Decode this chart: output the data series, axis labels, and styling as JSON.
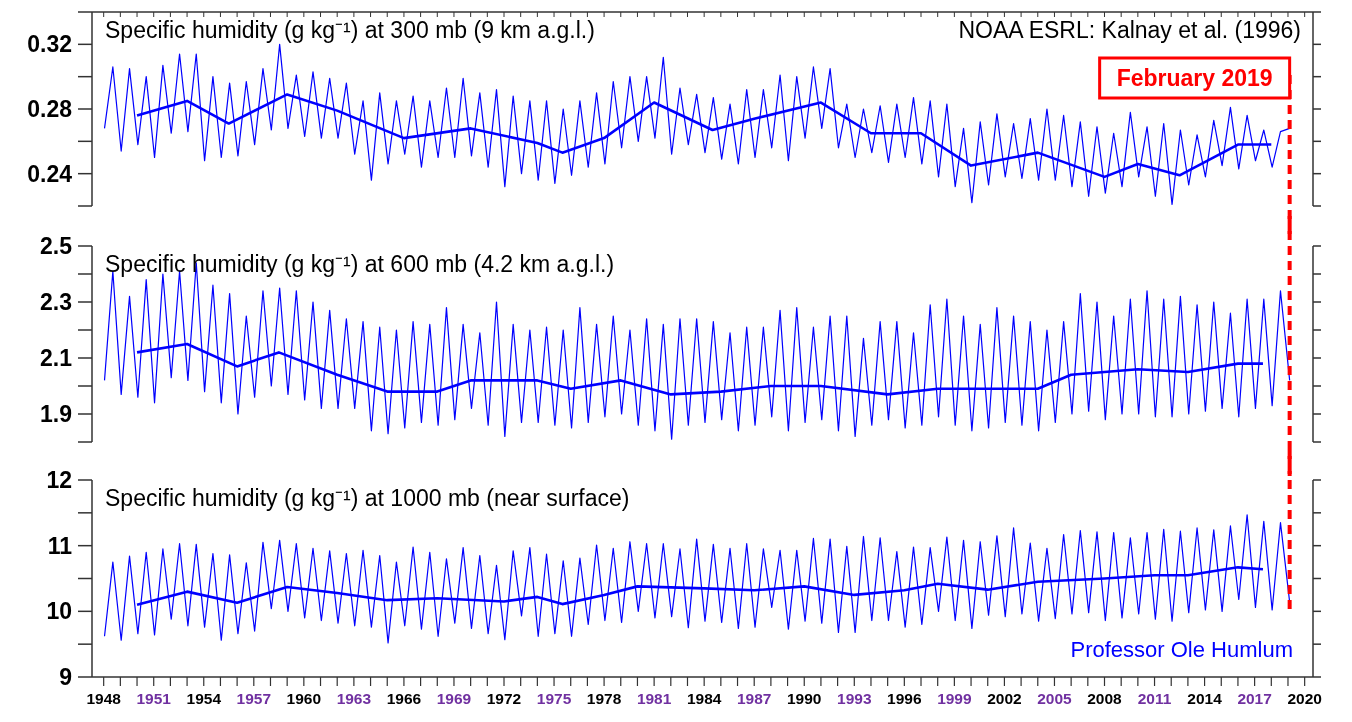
{
  "chart_data": [
    {
      "type": "line",
      "title": "Specific humidity (g kg⁻¹) at 300 mb (9 km a.g.l.)",
      "annotations": [
        "NOAA ESRL: Kalnay et al. (1996)"
      ],
      "xlim": [
        1947.3,
        2020.5
      ],
      "ylim": [
        0.22,
        0.34
      ],
      "yticks": [
        {
          "value": 0.22,
          "label": null
        },
        0.24,
        {
          "value": 0.26,
          "label": null
        },
        0.28,
        {
          "value": 0.3,
          "label": null
        },
        0.32,
        {
          "value": 0.34,
          "label": null
        }
      ],
      "tick_labels": "y",
      "ref_lines": [
        {
          "axis": "x",
          "value": 2019.1,
          "label": "February 2019",
          "color": "#ff0000",
          "line_style": "dashed"
        }
      ],
      "series": [
        {
          "color": "#0000ff",
          "x": [
            1948.05,
            1948.55,
            1949.05,
            1949.55,
            1950.05,
            1950.55,
            1951.05,
            1951.55,
            1952.05,
            1952.55,
            1953.05,
            1953.55,
            1954.05,
            1954.55,
            1955.05,
            1955.55,
            1956.05,
            1956.55,
            1957.05,
            1957.55,
            1958.05,
            1958.55,
            1959.05,
            1959.55,
            1960.05,
            1960.55,
            1961.05,
            1961.55,
            1962.05,
            1962.55,
            1963.05,
            1963.55,
            1964.05,
            1964.55,
            1965.05,
            1965.55,
            1966.05,
            1966.55,
            1967.05,
            1967.55,
            1968.05,
            1968.55,
            1969.05,
            1969.55,
            1970.05,
            1970.55,
            1971.05,
            1971.55,
            1972.05,
            1972.55,
            1973.05,
            1973.55,
            1974.05,
            1974.55,
            1975.05,
            1975.55,
            1976.05,
            1976.55,
            1977.05,
            1977.55,
            1978.05,
            1978.55,
            1979.05,
            1979.55,
            1980.05,
            1980.55,
            1981.05,
            1981.55,
            1982.05,
            1982.55,
            1983.05,
            1983.55,
            1984.05,
            1984.55,
            1985.05,
            1985.55,
            1986.05,
            1986.55,
            1987.05,
            1987.55,
            1988.05,
            1988.55,
            1989.05,
            1989.55,
            1990.05,
            1990.55,
            1991.05,
            1991.55,
            1992.05,
            1992.55,
            1993.05,
            1993.55,
            1994.05,
            1994.55,
            1995.05,
            1995.55,
            1996.05,
            1996.55,
            1997.05,
            1997.55,
            1998.05,
            1998.55,
            1999.05,
            1999.55,
            2000.05,
            2000.55,
            2001.05,
            2001.55,
            2002.05,
            2002.55,
            2003.05,
            2003.55,
            2004.05,
            2004.55,
            2005.05,
            2005.55,
            2006.05,
            2006.55,
            2007.05,
            2007.55,
            2008.05,
            2008.55,
            2009.05,
            2009.55,
            2010.05,
            2010.55,
            2011.05,
            2011.55,
            2012.05,
            2012.55,
            2013.05,
            2013.55,
            2014.05,
            2014.55,
            2015.05,
            2015.55,
            2016.05,
            2016.55,
            2017.05,
            2017.55,
            2018.05,
            2018.55,
            2019.1
          ],
          "values": [
            0.268,
            0.306,
            0.254,
            0.305,
            0.258,
            0.3,
            0.25,
            0.307,
            0.265,
            0.314,
            0.266,
            0.314,
            0.248,
            0.3,
            0.25,
            0.296,
            0.251,
            0.297,
            0.258,
            0.305,
            0.267,
            0.32,
            0.268,
            0.301,
            0.263,
            0.303,
            0.262,
            0.299,
            0.262,
            0.296,
            0.252,
            0.285,
            0.236,
            0.29,
            0.246,
            0.285,
            0.252,
            0.288,
            0.244,
            0.285,
            0.25,
            0.293,
            0.25,
            0.299,
            0.251,
            0.29,
            0.244,
            0.292,
            0.232,
            0.288,
            0.24,
            0.285,
            0.236,
            0.285,
            0.234,
            0.28,
            0.239,
            0.285,
            0.244,
            0.29,
            0.246,
            0.297,
            0.256,
            0.3,
            0.26,
            0.3,
            0.262,
            0.312,
            0.252,
            0.293,
            0.258,
            0.289,
            0.253,
            0.287,
            0.249,
            0.283,
            0.246,
            0.292,
            0.25,
            0.292,
            0.256,
            0.301,
            0.248,
            0.3,
            0.262,
            0.306,
            0.268,
            0.305,
            0.256,
            0.283,
            0.25,
            0.28,
            0.253,
            0.282,
            0.247,
            0.283,
            0.25,
            0.287,
            0.246,
            0.285,
            0.238,
            0.283,
            0.232,
            0.268,
            0.222,
            0.272,
            0.233,
            0.277,
            0.238,
            0.271,
            0.237,
            0.274,
            0.236,
            0.28,
            0.236,
            0.276,
            0.232,
            0.272,
            0.226,
            0.269,
            0.228,
            0.265,
            0.232,
            0.278,
            0.238,
            0.269,
            0.226,
            0.271,
            0.221,
            0.267,
            0.233,
            0.264,
            0.238,
            0.273,
            0.245,
            0.281,
            0.243,
            0.276,
            0.248,
            0.267,
            0.244,
            0.266,
            0.268
          ]
        },
        {
          "color": "#0000ff",
          "x": [
            1950,
            1953,
            1955.5,
            1959,
            1962,
            1966,
            1970,
            1974,
            1975.5,
            1978,
            1981,
            1984.5,
            1987,
            1991,
            1994,
            1997,
            2000,
            2004,
            2008,
            2010,
            2012.5,
            2016,
            2018
          ],
          "values": [
            0.276,
            0.285,
            0.271,
            0.289,
            0.279,
            0.262,
            0.268,
            0.259,
            0.253,
            0.262,
            0.284,
            0.267,
            0.274,
            0.284,
            0.265,
            0.265,
            0.245,
            0.253,
            0.238,
            0.246,
            0.239,
            0.258,
            0.258
          ]
        }
      ]
    },
    {
      "type": "line",
      "title": "Specific humidity (g kg⁻¹) at 600 mb (4.2 km a.g.l.)",
      "xlim": [
        1947.3,
        2020.5
      ],
      "ylim": [
        1.8,
        2.5
      ],
      "yticks": [
        {
          "value": 1.8,
          "label": null
        },
        1.9,
        {
          "value": 2.0,
          "label": null
        },
        2.1,
        {
          "value": 2.2,
          "label": null
        },
        2.3,
        {
          "value": 2.4,
          "label": null
        },
        2.5
      ],
      "tick_labels": "y",
      "ref_lines": [
        {
          "axis": "x",
          "value": 2019.1,
          "color": "#ff0000",
          "line_style": "dashed"
        }
      ],
      "series": [
        {
          "color": "#0000ff",
          "x": [
            1948.05,
            1948.55,
            1949.05,
            1949.55,
            1950.05,
            1950.55,
            1951.05,
            1951.55,
            1952.05,
            1952.55,
            1953.05,
            1953.55,
            1954.05,
            1954.55,
            1955.05,
            1955.55,
            1956.05,
            1956.55,
            1957.05,
            1957.55,
            1958.05,
            1958.55,
            1959.05,
            1959.55,
            1960.05,
            1960.55,
            1961.05,
            1961.55,
            1962.05,
            1962.55,
            1963.05,
            1963.55,
            1964.05,
            1964.55,
            1965.05,
            1965.55,
            1966.05,
            1966.55,
            1967.05,
            1967.55,
            1968.05,
            1968.55,
            1969.05,
            1969.55,
            1970.05,
            1970.55,
            1971.05,
            1971.55,
            1972.05,
            1972.55,
            1973.05,
            1973.55,
            1974.05,
            1974.55,
            1975.05,
            1975.55,
            1976.05,
            1976.55,
            1977.05,
            1977.55,
            1978.05,
            1978.55,
            1979.05,
            1979.55,
            1980.05,
            1980.55,
            1981.05,
            1981.55,
            1982.05,
            1982.55,
            1983.05,
            1983.55,
            1984.05,
            1984.55,
            1985.05,
            1985.55,
            1986.05,
            1986.55,
            1987.05,
            1987.55,
            1988.05,
            1988.55,
            1989.05,
            1989.55,
            1990.05,
            1990.55,
            1991.05,
            1991.55,
            1992.05,
            1992.55,
            1993.05,
            1993.55,
            1994.05,
            1994.55,
            1995.05,
            1995.55,
            1996.05,
            1996.55,
            1997.05,
            1997.55,
            1998.05,
            1998.55,
            1999.05,
            1999.55,
            2000.05,
            2000.55,
            2001.05,
            2001.55,
            2002.05,
            2002.55,
            2003.05,
            2003.55,
            2004.05,
            2004.55,
            2005.05,
            2005.55,
            2006.05,
            2006.55,
            2007.05,
            2007.55,
            2008.05,
            2008.55,
            2009.05,
            2009.55,
            2010.05,
            2010.55,
            2011.05,
            2011.55,
            2012.05,
            2012.55,
            2013.05,
            2013.55,
            2014.05,
            2014.55,
            2015.05,
            2015.55,
            2016.05,
            2016.55,
            2017.05,
            2017.55,
            2018.05,
            2018.55,
            2019.1
          ],
          "values": [
            2.02,
            2.41,
            1.97,
            2.32,
            1.96,
            2.38,
            1.94,
            2.4,
            2.03,
            2.41,
            2.02,
            2.44,
            1.98,
            2.36,
            1.94,
            2.33,
            1.9,
            2.25,
            1.96,
            2.34,
            2.0,
            2.35,
            1.97,
            2.34,
            1.95,
            2.3,
            1.92,
            2.27,
            1.92,
            2.24,
            1.92,
            2.23,
            1.84,
            2.21,
            1.83,
            2.2,
            1.85,
            2.23,
            1.87,
            2.22,
            1.86,
            2.28,
            1.88,
            2.22,
            1.92,
            2.19,
            1.86,
            2.3,
            1.82,
            2.22,
            1.87,
            2.2,
            1.87,
            2.21,
            1.86,
            2.2,
            1.85,
            2.28,
            1.87,
            2.22,
            1.89,
            2.25,
            1.9,
            2.2,
            1.86,
            2.24,
            1.84,
            2.22,
            1.81,
            2.24,
            1.86,
            2.24,
            1.87,
            2.23,
            1.88,
            2.19,
            1.84,
            2.21,
            1.86,
            2.21,
            1.89,
            2.27,
            1.84,
            2.28,
            1.87,
            2.21,
            1.88,
            2.25,
            1.84,
            2.25,
            1.82,
            2.17,
            1.86,
            2.23,
            1.88,
            2.23,
            1.85,
            2.19,
            1.86,
            2.29,
            1.89,
            2.31,
            1.86,
            2.25,
            1.84,
            2.22,
            1.85,
            2.28,
            1.87,
            2.25,
            1.86,
            2.23,
            1.84,
            2.2,
            1.87,
            2.23,
            1.9,
            2.33,
            1.91,
            2.3,
            1.88,
            2.25,
            1.9,
            2.31,
            1.9,
            2.34,
            1.89,
            2.31,
            1.89,
            2.32,
            1.9,
            2.29,
            1.91,
            2.3,
            1.92,
            2.26,
            1.89,
            2.31,
            1.92,
            2.31,
            1.93,
            2.34,
            2.02
          ]
        },
        {
          "color": "#0000ff",
          "x": [
            1950,
            1953,
            1956,
            1958.5,
            1962,
            1965,
            1968,
            1970,
            1974,
            1976,
            1979,
            1982,
            1985,
            1988,
            1991,
            1995,
            1998,
            2001,
            2004,
            2006,
            2010,
            2013,
            2016,
            2017.5
          ],
          "values": [
            2.12,
            2.15,
            2.07,
            2.12,
            2.04,
            1.98,
            1.98,
            2.02,
            2.02,
            1.99,
            2.02,
            1.97,
            1.98,
            2.0,
            2.0,
            1.97,
            1.99,
            1.99,
            1.99,
            2.04,
            2.06,
            2.05,
            2.08,
            2.08
          ]
        }
      ]
    },
    {
      "type": "line",
      "title": "Specific humidity (g kg⁻¹) at 1000 mb (near surface)",
      "annotations": [
        "Professor Ole Humlum"
      ],
      "xlim": [
        1947.3,
        2020.5
      ],
      "ylim": [
        9,
        12
      ],
      "yticks": [
        9,
        {
          "value": 9.5,
          "label": null
        },
        10,
        {
          "value": 10.5,
          "label": null
        },
        11,
        {
          "value": 11.5,
          "label": null
        },
        12
      ],
      "xticks": [
        1948,
        {
          "value": 1949,
          "label": null
        },
        {
          "value": 1950,
          "label": null
        },
        1951,
        {
          "value": 1952,
          "label": null
        },
        {
          "value": 1953,
          "label": null
        },
        1954,
        {
          "value": 1955,
          "label": null
        },
        {
          "value": 1956,
          "label": null
        },
        1957,
        {
          "value": 1958,
          "label": null
        },
        {
          "value": 1959,
          "label": null
        },
        1960,
        {
          "value": 1961,
          "label": null
        },
        {
          "value": 1962,
          "label": null
        },
        1963,
        {
          "value": 1964,
          "label": null
        },
        {
          "value": 1965,
          "label": null
        },
        1966,
        {
          "value": 1967,
          "label": null
        },
        {
          "value": 1968,
          "label": null
        },
        1969,
        {
          "value": 1970,
          "label": null
        },
        {
          "value": 1971,
          "label": null
        },
        1972,
        {
          "value": 1973,
          "label": null
        },
        {
          "value": 1974,
          "label": null
        },
        1975,
        {
          "value": 1976,
          "label": null
        },
        {
          "value": 1977,
          "label": null
        },
        1978,
        {
          "value": 1979,
          "label": null
        },
        {
          "value": 1980,
          "label": null
        },
        1981,
        {
          "value": 1982,
          "label": null
        },
        {
          "value": 1983,
          "label": null
        },
        1984,
        {
          "value": 1985,
          "label": null
        },
        {
          "value": 1986,
          "label": null
        },
        1987,
        {
          "value": 1988,
          "label": null
        },
        {
          "value": 1989,
          "label": null
        },
        1990,
        {
          "value": 1991,
          "label": null
        },
        {
          "value": 1992,
          "label": null
        },
        1993,
        {
          "value": 1994,
          "label": null
        },
        {
          "value": 1995,
          "label": null
        },
        1996,
        {
          "value": 1997,
          "label": null
        },
        {
          "value": 1998,
          "label": null
        },
        1999,
        {
          "value": 2000,
          "label": null
        },
        {
          "value": 2001,
          "label": null
        },
        2002,
        {
          "value": 2003,
          "label": null
        },
        {
          "value": 2004,
          "label": null
        },
        2005,
        {
          "value": 2006,
          "label": null
        },
        {
          "value": 2007,
          "label": null
        },
        2008,
        {
          "value": 2009,
          "label": null
        },
        {
          "value": 2010,
          "label": null
        },
        2011,
        {
          "value": 2012,
          "label": null
        },
        {
          "value": 2013,
          "label": null
        },
        2014,
        {
          "value": 2015,
          "label": null
        },
        {
          "value": 2016,
          "label": null
        },
        2017,
        {
          "value": 2018,
          "label": null
        },
        {
          "value": 2019,
          "label": null
        },
        2020
      ],
      "ref_lines": [
        {
          "axis": "x",
          "value": 2019.1,
          "color": "#ff0000",
          "line_style": "dashed"
        }
      ],
      "series": [
        {
          "color": "#0000ff",
          "x": [
            1948.05,
            1948.55,
            1949.05,
            1949.55,
            1950.05,
            1950.55,
            1951.05,
            1951.55,
            1952.05,
            1952.55,
            1953.05,
            1953.55,
            1954.05,
            1954.55,
            1955.05,
            1955.55,
            1956.05,
            1956.55,
            1957.05,
            1957.55,
            1958.05,
            1958.55,
            1959.05,
            1959.55,
            1960.05,
            1960.55,
            1961.05,
            1961.55,
            1962.05,
            1962.55,
            1963.05,
            1963.55,
            1964.05,
            1964.55,
            1965.05,
            1965.55,
            1966.05,
            1966.55,
            1967.05,
            1967.55,
            1968.05,
            1968.55,
            1969.05,
            1969.55,
            1970.05,
            1970.55,
            1971.05,
            1971.55,
            1972.05,
            1972.55,
            1973.05,
            1973.55,
            1974.05,
            1974.55,
            1975.05,
            1975.55,
            1976.05,
            1976.55,
            1977.05,
            1977.55,
            1978.05,
            1978.55,
            1979.05,
            1979.55,
            1980.05,
            1980.55,
            1981.05,
            1981.55,
            1982.05,
            1982.55,
            1983.05,
            1983.55,
            1984.05,
            1984.55,
            1985.05,
            1985.55,
            1986.05,
            1986.55,
            1987.05,
            1987.55,
            1988.05,
            1988.55,
            1989.05,
            1989.55,
            1990.05,
            1990.55,
            1991.05,
            1991.55,
            1992.05,
            1992.55,
            1993.05,
            1993.55,
            1994.05,
            1994.55,
            1995.05,
            1995.55,
            1996.05,
            1996.55,
            1997.05,
            1997.55,
            1998.05,
            1998.55,
            1999.05,
            1999.55,
            2000.05,
            2000.55,
            2001.05,
            2001.55,
            2002.05,
            2002.55,
            2003.05,
            2003.55,
            2004.05,
            2004.55,
            2005.05,
            2005.55,
            2006.05,
            2006.55,
            2007.05,
            2007.55,
            2008.05,
            2008.55,
            2009.05,
            2009.55,
            2010.05,
            2010.55,
            2011.05,
            2011.55,
            2012.05,
            2012.55,
            2013.05,
            2013.55,
            2014.05,
            2014.55,
            2015.05,
            2015.55,
            2016.05,
            2016.55,
            2017.05,
            2017.55,
            2018.05,
            2018.55,
            2019.1
          ],
          "values": [
            9.62,
            10.75,
            9.56,
            10.84,
            9.66,
            10.9,
            9.64,
            10.95,
            9.88,
            11.03,
            9.78,
            11.02,
            9.76,
            10.88,
            9.56,
            10.86,
            9.66,
            10.74,
            9.7,
            11.05,
            10.04,
            11.08,
            10.0,
            11.03,
            9.9,
            10.96,
            9.86,
            10.92,
            9.82,
            10.88,
            9.78,
            10.93,
            9.76,
            10.85,
            9.52,
            10.75,
            9.78,
            10.98,
            9.73,
            10.9,
            9.62,
            10.8,
            9.82,
            10.97,
            9.74,
            10.85,
            9.66,
            10.7,
            9.57,
            10.92,
            9.93,
            10.97,
            9.62,
            10.87,
            9.66,
            10.77,
            9.62,
            10.81,
            9.8,
            11.01,
            9.86,
            10.96,
            9.83,
            11.06,
            10.0,
            11.03,
            9.9,
            11.03,
            9.92,
            10.95,
            9.75,
            11.1,
            9.85,
            11.02,
            9.83,
            10.96,
            9.74,
            11.03,
            9.76,
            10.95,
            10.06,
            10.93,
            9.73,
            10.93,
            9.85,
            11.11,
            9.82,
            11.1,
            9.68,
            10.99,
            9.68,
            11.14,
            9.86,
            11.12,
            9.86,
            10.91,
            9.76,
            10.98,
            9.8,
            10.97,
            10.0,
            11.13,
            9.86,
            11.08,
            9.74,
            11.06,
            9.94,
            11.15,
            9.92,
            11.27,
            9.96,
            11.04,
            9.85,
            10.96,
            9.89,
            11.17,
            9.96,
            11.23,
            9.98,
            11.21,
            9.86,
            11.2,
            9.9,
            11.12,
            9.96,
            11.2,
            9.88,
            11.25,
            9.85,
            11.22,
            9.98,
            11.27,
            10.02,
            11.24,
            10.0,
            11.3,
            10.18,
            11.47,
            10.06,
            11.37,
            10.02,
            11.35,
            10.14
          ]
        },
        {
          "color": "#0000ff",
          "x": [
            1950,
            1953,
            1956,
            1959,
            1962,
            1965,
            1968,
            1972,
            1974,
            1975.5,
            1978,
            1980,
            1984,
            1987,
            1990,
            1993,
            1996,
            1998,
            2001,
            2004,
            2008,
            2011,
            2013,
            2016,
            2017.5
          ],
          "values": [
            10.1,
            10.3,
            10.13,
            10.37,
            10.28,
            10.17,
            10.2,
            10.15,
            10.22,
            10.11,
            10.25,
            10.38,
            10.35,
            10.32,
            10.38,
            10.25,
            10.32,
            10.42,
            10.33,
            10.45,
            10.5,
            10.55,
            10.55,
            10.67,
            10.64
          ]
        }
      ]
    }
  ]
}
